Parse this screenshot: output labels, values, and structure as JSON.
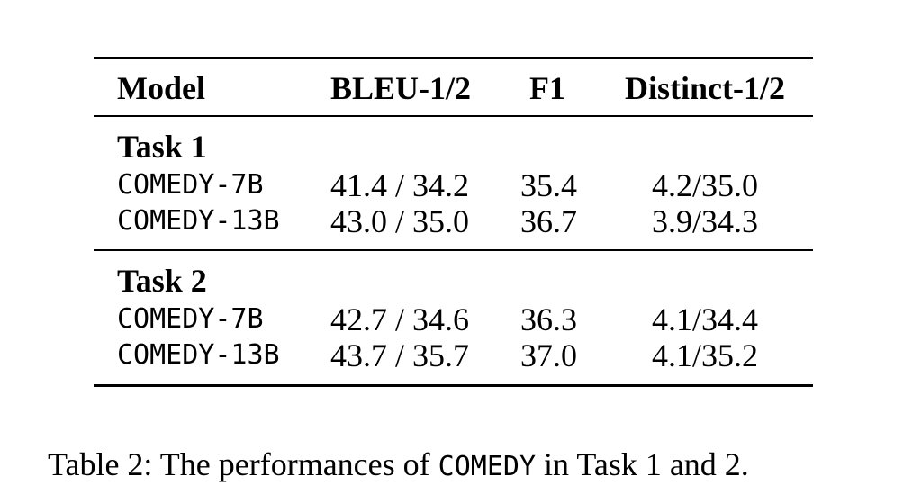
{
  "table": {
    "headers": [
      "Model",
      "BLEU-1/2",
      "F1",
      "Distinct-1/2"
    ],
    "groups": [
      {
        "title": "Task 1",
        "rows": [
          {
            "model": "COMEDY-7B",
            "bleu": "41.4 / 34.2",
            "f1": "35.4",
            "distinct": "4.2/35.0"
          },
          {
            "model": "COMEDY-13B",
            "bleu": "43.0 / 35.0",
            "f1": "36.7",
            "distinct": "3.9/34.3"
          }
        ]
      },
      {
        "title": "Task 2",
        "rows": [
          {
            "model": "COMEDY-7B",
            "bleu": "42.7 / 34.6",
            "f1": "36.3",
            "distinct": "4.1/34.4"
          },
          {
            "model": "COMEDY-13B",
            "bleu": "43.7 / 35.7",
            "f1": "37.0",
            "distinct": "4.1/35.2"
          }
        ]
      }
    ]
  },
  "caption": {
    "prefix": "Table 2: The performances of ",
    "name": "COMEDY",
    "suffix": " in Task 1 and 2."
  }
}
